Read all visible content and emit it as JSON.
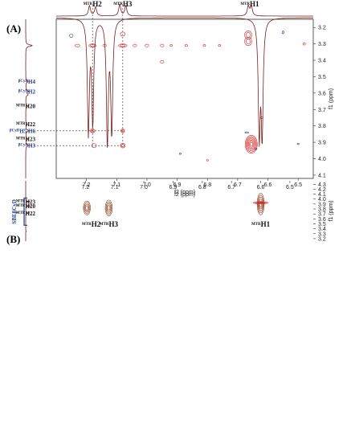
{
  "chart_data": [
    {
      "type": "heatmap",
      "panel_label": "(A)",
      "xlabel": "f2 (ppm)",
      "ylabel": "f1 (ppm)",
      "xlim": [
        7.3,
        6.45
      ],
      "ylim": [
        3.15,
        4.12
      ],
      "x_ticks": [
        7.2,
        7.1,
        7.0,
        6.9,
        6.8,
        6.7,
        6.6,
        6.5
      ],
      "y_ticks": [
        3.2,
        3.3,
        3.4,
        3.5,
        3.6,
        3.7,
        3.8,
        3.9,
        4.0,
        4.1
      ],
      "top_labels": [
        {
          "prefix": "MTR",
          "name": "H2",
          "ppm": 7.18
        },
        {
          "prefix": "MTR",
          "name": "H3",
          "ppm": 7.08
        },
        {
          "prefix": "MTR",
          "name": "H1",
          "ppm": 6.66
        }
      ],
      "side_labels": [
        {
          "prefix": "βCyD",
          "name": "H4",
          "ppm": 3.53,
          "color": "#1f3c88"
        },
        {
          "prefix": "βCyD",
          "name": "H2",
          "ppm": 3.59,
          "color": "#1f3c88"
        },
        {
          "prefix": "MTR",
          "name": "H20",
          "ppm": 3.68,
          "color": "#111111"
        },
        {
          "prefix": "MTR",
          "name": "H22",
          "ppm": 3.79,
          "color": "#111111"
        },
        {
          "prefix": "βCyD",
          "name": "H5 H6",
          "ppm": 3.83,
          "color": "#1f3c88"
        },
        {
          "prefix": "MTR",
          "name": "H23",
          "ppm": 3.88,
          "color": "#111111"
        },
        {
          "prefix": "βCyD",
          "name": "H3",
          "ppm": 3.92,
          "color": "#1f3c88"
        }
      ],
      "guide_lines": {
        "x": [
          7.18,
          7.08
        ],
        "y": [
          3.83,
          3.92
        ]
      },
      "cross_peaks": [
        {
          "x": 6.655,
          "y": 3.912,
          "w": 0.02,
          "h": 0.055,
          "color": "#d62728",
          "levels": 7
        },
        {
          "x": 6.665,
          "y": 3.245,
          "w": 0.012,
          "h": 0.025,
          "color": "#d62728",
          "levels": 2
        },
        {
          "x": 6.665,
          "y": 3.285,
          "w": 0.012,
          "h": 0.025,
          "color": "#d62728",
          "levels": 2
        },
        {
          "x": 7.18,
          "y": 3.31,
          "w": 0.012,
          "h": 0.01,
          "color": "#d62728",
          "levels": 2
        },
        {
          "x": 7.08,
          "y": 3.31,
          "w": 0.014,
          "h": 0.01,
          "color": "#d62728",
          "levels": 2
        },
        {
          "x": 7.08,
          "y": 3.24,
          "w": 0.008,
          "h": 0.012,
          "color": "#d62728",
          "levels": 1
        },
        {
          "x": 7.08,
          "y": 3.83,
          "w": 0.006,
          "h": 0.012,
          "color": "#d62728",
          "levels": 2
        },
        {
          "x": 7.08,
          "y": 3.92,
          "w": 0.008,
          "h": 0.014,
          "color": "#d62728",
          "levels": 2
        },
        {
          "x": 7.18,
          "y": 3.83,
          "w": 0.008,
          "h": 0.012,
          "color": "#d62728",
          "levels": 2
        },
        {
          "x": 7.175,
          "y": 3.92,
          "w": 0.008,
          "h": 0.012,
          "color": "#d62728",
          "levels": 1
        },
        {
          "x": 7.23,
          "y": 3.31,
          "w": 0.008,
          "h": 0.008,
          "color": "#d62728",
          "levels": 1
        },
        {
          "x": 7.14,
          "y": 3.31,
          "w": 0.006,
          "h": 0.008,
          "color": "#d62728",
          "levels": 1
        },
        {
          "x": 7.04,
          "y": 3.31,
          "w": 0.006,
          "h": 0.008,
          "color": "#d62728",
          "levels": 1
        },
        {
          "x": 7.0,
          "y": 3.31,
          "w": 0.006,
          "h": 0.008,
          "color": "#d62728",
          "levels": 1
        },
        {
          "x": 6.95,
          "y": 3.31,
          "w": 0.006,
          "h": 0.008,
          "color": "#d62728",
          "levels": 1
        },
        {
          "x": 6.92,
          "y": 3.31,
          "w": 0.004,
          "h": 0.006,
          "color": "#d62728",
          "levels": 1
        },
        {
          "x": 6.87,
          "y": 3.31,
          "w": 0.004,
          "h": 0.006,
          "color": "#d62728",
          "levels": 1
        },
        {
          "x": 6.81,
          "y": 3.31,
          "w": 0.004,
          "h": 0.006,
          "color": "#d62728",
          "levels": 1
        },
        {
          "x": 6.76,
          "y": 3.31,
          "w": 0.004,
          "h": 0.006,
          "color": "#d62728",
          "levels": 1
        },
        {
          "x": 6.48,
          "y": 3.3,
          "w": 0.004,
          "h": 0.007,
          "color": "#d62728",
          "levels": 1
        },
        {
          "x": 6.95,
          "y": 3.41,
          "w": 0.006,
          "h": 0.008,
          "color": "#d62728",
          "levels": 1
        },
        {
          "x": 6.62,
          "y": 3.75,
          "w": 0.004,
          "h": 0.006,
          "color": "#d62728",
          "levels": 1
        },
        {
          "x": 6.8,
          "y": 4.01,
          "w": 0.003,
          "h": 0.004,
          "color": "#d62728",
          "levels": 1
        },
        {
          "x": 7.25,
          "y": 3.25,
          "w": 0.006,
          "h": 0.01,
          "color": "#1f3c88",
          "levels": 1
        },
        {
          "x": 6.55,
          "y": 3.23,
          "w": 0.003,
          "h": 0.008,
          "color": "#1f3c88",
          "levels": 1
        },
        {
          "x": 6.67,
          "y": 3.84,
          "w": 0.006,
          "h": 0.004,
          "color": "#1f3c88",
          "levels": 1
        },
        {
          "x": 6.64,
          "y": 3.94,
          "w": 0.004,
          "h": 0.005,
          "color": "#1f3c88",
          "levels": 1
        },
        {
          "x": 6.89,
          "y": 3.97,
          "w": 0.003,
          "h": 0.004,
          "color": "#1f3c88",
          "levels": 1
        },
        {
          "x": 6.5,
          "y": 3.91,
          "w": 0.003,
          "h": 0.004,
          "color": "#1f3c88",
          "levels": 1
        }
      ],
      "top_spectrum_peaks": [
        {
          "ppm": 7.19,
          "height": 0.8
        },
        {
          "ppm": 7.17,
          "height": 0.7
        },
        {
          "ppm": 7.09,
          "height": 0.9
        },
        {
          "ppm": 7.07,
          "height": 0.8
        },
        {
          "ppm": 6.665,
          "height": 0.75
        },
        {
          "ppm": 6.655,
          "height": 0.8
        }
      ],
      "side_spectrum_peaks": [
        {
          "ppm": 3.31,
          "height": 1.0
        },
        {
          "ppm": 3.53,
          "height": 0.35
        },
        {
          "ppm": 3.59,
          "height": 0.4
        },
        {
          "ppm": 3.61,
          "height": 0.35
        },
        {
          "ppm": 3.68,
          "height": 0.3
        },
        {
          "ppm": 3.79,
          "height": 0.2
        },
        {
          "ppm": 3.83,
          "height": 0.45
        },
        {
          "ppm": 3.88,
          "height": 0.3
        },
        {
          "ppm": 3.92,
          "height": 0.4
        }
      ]
    },
    {
      "type": "heatmap",
      "panel_label": "(B)",
      "xlabel": "f2 (ppm)",
      "ylabel": "f1 (ppm)",
      "xlim": [
        7.3,
        6.42
      ],
      "ylim": [
        3.15,
        4.37
      ],
      "x_ticks": [
        7.2,
        7.1,
        7.0,
        6.9,
        6.8,
        6.7,
        6.6,
        6.5
      ],
      "y_ticks": [
        3.2,
        3.3,
        3.4,
        3.5,
        3.6,
        3.7,
        3.8,
        3.9,
        4.0,
        4.1,
        4.2,
        4.3
      ],
      "top_labels": [
        {
          "prefix": "MTR",
          "name": "H2",
          "ppm": 7.18
        },
        {
          "prefix": "MTR",
          "name": "H3",
          "ppm": 7.12
        },
        {
          "prefix": "MTR",
          "name": "H1",
          "ppm": 6.6
        }
      ],
      "side_labels": [
        {
          "prefix": "MTR",
          "name": "H22",
          "ppm": 3.71,
          "color": "#111111"
        },
        {
          "prefix": "MTR",
          "name": "H20",
          "ppm": 3.86,
          "color": "#111111"
        },
        {
          "prefix": "MTR",
          "name": "H23",
          "ppm": 3.95,
          "color": "#111111"
        }
      ],
      "bracket_label": "SBEβCyD",
      "bracket_color": "#1f3c88",
      "bracket_range": [
        3.47,
        4.02
      ],
      "cross_peaks": [
        {
          "x": 7.195,
          "y": 3.82,
          "w": 0.012,
          "h": 0.14,
          "color": "#8b3a1a",
          "levels": 4
        },
        {
          "x": 7.12,
          "y": 3.82,
          "w": 0.012,
          "h": 0.16,
          "color": "#8b3a1a",
          "levels": 4
        },
        {
          "x": 6.6,
          "y": 3.9,
          "w": 0.012,
          "h": 0.22,
          "color": "#8b3a1a",
          "levels": 5
        },
        {
          "x": 6.6,
          "y": 3.925,
          "w": 0.026,
          "h": 0.018,
          "color": "#d62728",
          "levels": 4
        }
      ],
      "top_spectrum_peaks": [
        {
          "ppm": 7.19,
          "height": 0.55
        },
        {
          "ppm": 7.175,
          "height": 0.5
        },
        {
          "ppm": 7.125,
          "height": 0.6
        },
        {
          "ppm": 7.11,
          "height": 0.55
        },
        {
          "ppm": 6.605,
          "height": 0.55
        },
        {
          "ppm": 6.595,
          "height": 0.55
        }
      ],
      "side_spectrum_peaks": [
        {
          "ppm": 3.35,
          "height": 0.1
        },
        {
          "ppm": 3.72,
          "height": 0.55
        },
        {
          "ppm": 3.86,
          "height": 0.8
        },
        {
          "ppm": 3.95,
          "height": 0.7
        }
      ]
    }
  ]
}
